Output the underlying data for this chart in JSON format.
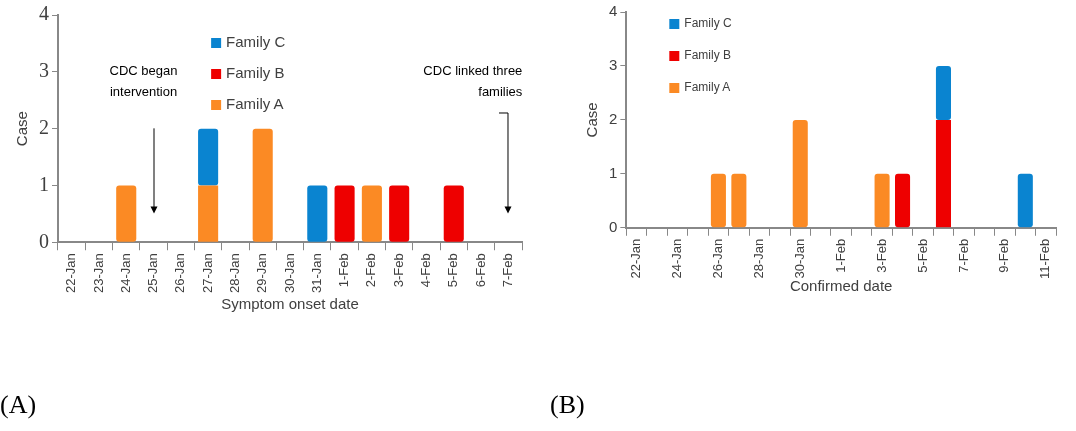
{
  "chart_data": [
    {
      "type": "bar",
      "stacked": true,
      "xlabel": "Symptom onset date",
      "ylabel": "Case",
      "legend": "top",
      "grid": false,
      "categories": [
        "22-Jan",
        "23-Jan",
        "24-Jan",
        "25-Jan",
        "26-Jan",
        "27-Jan",
        "28-Jan",
        "29-Jan",
        "30-Jan",
        "31-Jan",
        "1-Feb",
        "2-Feb",
        "3-Feb",
        "4-Feb",
        "5-Feb",
        "6-Feb",
        "7-Feb"
      ],
      "series": [
        {
          "name": "Family A",
          "color": "#fb8a24",
          "values": [
            0,
            0,
            1,
            0,
            0,
            1,
            0,
            2,
            0,
            0,
            0,
            1,
            0,
            0,
            0,
            0,
            0
          ]
        },
        {
          "name": "Family B",
          "color": "#ee0000",
          "values": [
            0,
            0,
            0,
            0,
            0,
            0,
            0,
            0,
            0,
            0,
            1,
            0,
            1,
            0,
            1,
            0,
            0
          ]
        },
        {
          "name": "Family C",
          "color": "#0a84d0",
          "values": [
            0,
            0,
            0,
            0,
            0,
            1,
            0,
            0,
            0,
            1,
            0,
            0,
            0,
            0,
            0,
            0,
            0
          ]
        }
      ],
      "ylim": [
        0,
        4
      ],
      "yticks": [
        0,
        1,
        2,
        3,
        4
      ],
      "ref_lines": [
        {
          "axis": "x",
          "value": "25-Jan",
          "label": "CDC began intervention",
          "color": "#000000"
        },
        {
          "axis": "x",
          "value": "7-Feb",
          "label": "CDC linked three families",
          "color": "#000000"
        }
      ],
      "annotations": [
        "(A)"
      ]
    },
    {
      "type": "bar",
      "stacked": true,
      "xlabel": "Confirmed date",
      "ylabel": "Case",
      "legend": "top",
      "grid": false,
      "categories": [
        "22-Jan",
        null,
        "24-Jan",
        null,
        "26-Jan",
        null,
        "28-Jan",
        null,
        "30-Jan",
        null,
        "1-Feb",
        null,
        "3-Feb",
        null,
        "5-Feb",
        null,
        "7-Feb",
        null,
        "9-Feb",
        null,
        "11-Feb"
      ],
      "series": [
        {
          "name": "Family A",
          "color": "#fb8a24",
          "values": [
            0,
            0,
            0,
            0,
            1,
            1,
            0,
            0,
            2,
            0,
            0,
            0,
            1,
            0,
            0,
            0,
            0,
            0,
            0,
            0,
            0
          ]
        },
        {
          "name": "Family B",
          "color": "#ee0000",
          "values": [
            0,
            0,
            0,
            0,
            0,
            0,
            0,
            0,
            0,
            0,
            0,
            0,
            0,
            1,
            0,
            2,
            0,
            0,
            0,
            0,
            0
          ]
        },
        {
          "name": "Family C",
          "color": "#0a84d0",
          "values": [
            0,
            0,
            0,
            0,
            0,
            0,
            0,
            0,
            0,
            0,
            0,
            0,
            0,
            0,
            0,
            1,
            0,
            0,
            0,
            1,
            0
          ]
        }
      ],
      "ylim": [
        0,
        4
      ],
      "yticks": [
        0,
        1,
        2,
        3,
        4
      ],
      "annotations": [
        "(B)"
      ]
    }
  ]
}
